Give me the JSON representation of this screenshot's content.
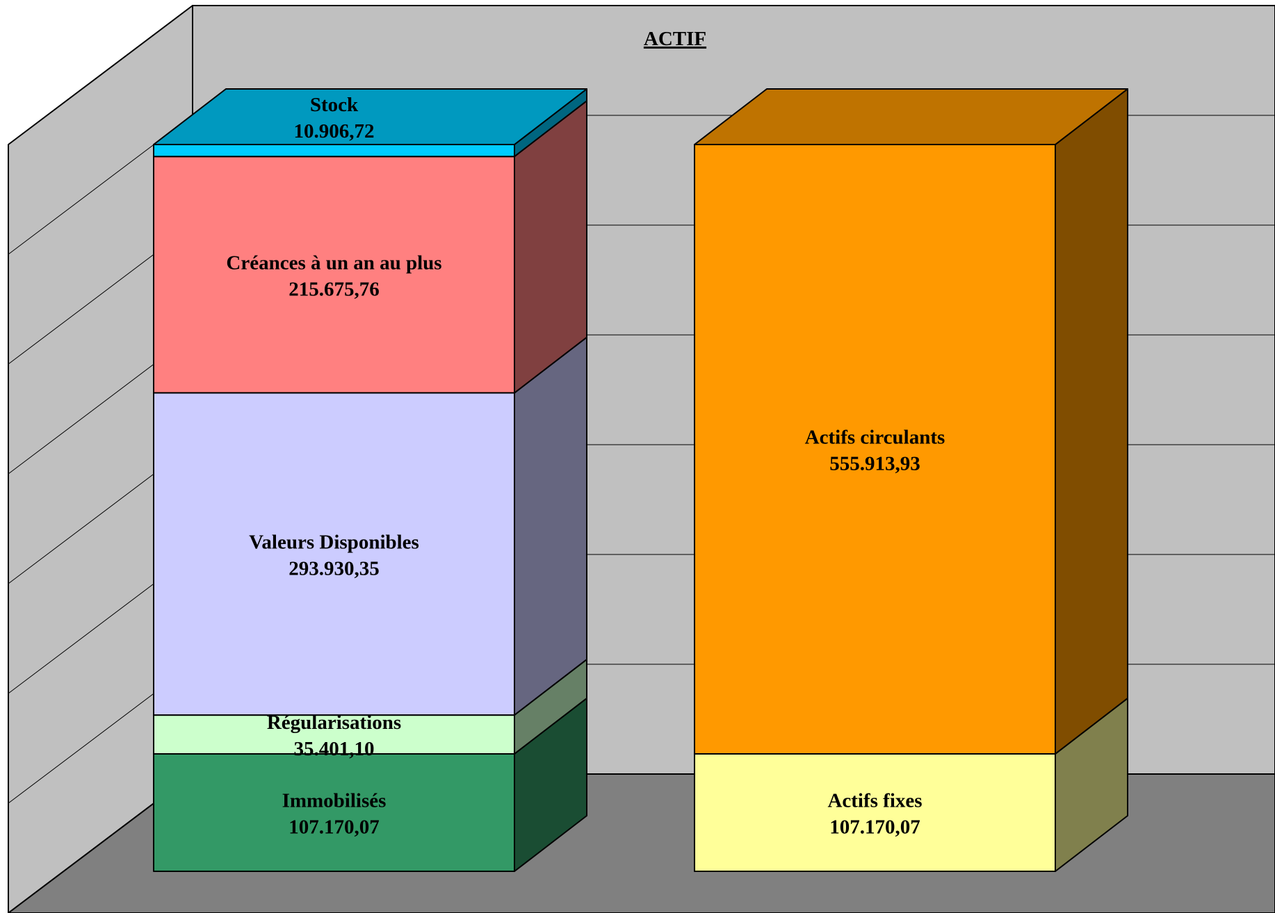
{
  "chart_data": {
    "type": "bar",
    "stacked": true,
    "three_d": true,
    "title": "ACTIF",
    "grid": true,
    "legend": "none",
    "background": {
      "back_wall": "#c0c0c0",
      "side_wall": "#c0c0c0",
      "floor": "#808080"
    },
    "bars": [
      {
        "segments": [
          {
            "label": "Immobilisés",
            "value_text": "107.170,07",
            "value": 107170.07,
            "color": "#339966"
          },
          {
            "label": "Régularisations",
            "value_text": "35.401,10",
            "value": 35401.1,
            "color": "#ccffcc"
          },
          {
            "label": "Valeurs Disponibles",
            "value_text": "293.930,35",
            "value": 293930.35,
            "color": "#ccccff"
          },
          {
            "label": "Créances à un an au plus",
            "value_text": "215.675,76",
            "value": 215675.76,
            "color": "#ff8080"
          },
          {
            "label": "Stock",
            "value_text": "10.906,72",
            "value": 10906.72,
            "color": "#00ccff"
          }
        ]
      },
      {
        "segments": [
          {
            "label": "Actifs fixes",
            "value_text": "107.170,07",
            "value": 107170.07,
            "color": "#ffff99"
          },
          {
            "label": "Actifs circulants",
            "value_text": "555.913,93",
            "value": 555913.93,
            "color": "#ff9900"
          }
        ]
      }
    ]
  }
}
